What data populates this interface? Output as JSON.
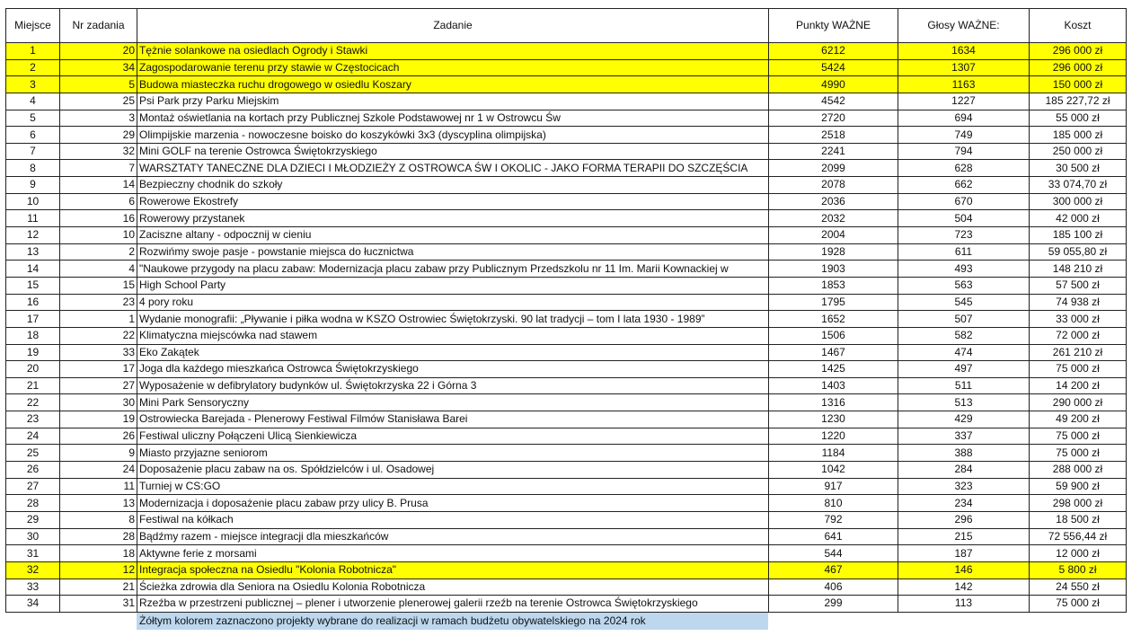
{
  "headers": [
    "Miejsce",
    "Nr zadania",
    "Zadanie",
    "Punkty WAŻNE",
    "Głosy WAŻNE:",
    "Koszt"
  ],
  "highlight_color": "#ffff00",
  "note_color": "#bdd7ee",
  "rows": [
    {
      "place": "1",
      "nr": "20",
      "task": "Tężnie solankowe na osiedlach Ogrody i Stawki",
      "points": "6212",
      "votes": "1634",
      "cost": "296 000 zł",
      "selected": true
    },
    {
      "place": "2",
      "nr": "34",
      "task": "Zagospodarowanie terenu przy stawie w Częstocicach",
      "points": "5424",
      "votes": "1307",
      "cost": "296 000 zł",
      "selected": true
    },
    {
      "place": "3",
      "nr": "5",
      "task": "Budowa miasteczka ruchu drogowego w osiedlu Koszary",
      "points": "4990",
      "votes": "1163",
      "cost": "150 000 zł",
      "selected": true
    },
    {
      "place": "4",
      "nr": "25",
      "task": "Psi Park przy Parku Miejskim",
      "points": "4542",
      "votes": "1227",
      "cost": "185 227,72 zł",
      "selected": false
    },
    {
      "place": "5",
      "nr": "3",
      "task": "Montaż oświetlania na kortach przy Publicznej Szkole Podstawowej nr 1 w Ostrowcu Św",
      "points": "2720",
      "votes": "694",
      "cost": "55 000 zł",
      "selected": false
    },
    {
      "place": "6",
      "nr": "29",
      "task": "Olimpijskie marzenia - nowoczesne boisko do koszykówki 3x3 (dyscyplina olimpijska)",
      "points": "2518",
      "votes": "749",
      "cost": "185 000 zł",
      "selected": false
    },
    {
      "place": "7",
      "nr": "32",
      "task": "Mini GOLF na terenie Ostrowca Świętokrzyskiego",
      "points": "2241",
      "votes": "794",
      "cost": "250 000 zł",
      "selected": false
    },
    {
      "place": "8",
      "nr": "7",
      "task": "WARSZTATY TANECZNE DLA DZIECI I MŁODZIEŻY Z OSTROWCA ŚW I OKOLIC - JAKO FORMA TERAPII DO SZCZĘŚCIA",
      "points": "2099",
      "votes": "628",
      "cost": "30 500 zł",
      "selected": false
    },
    {
      "place": "9",
      "nr": "14",
      "task": "Bezpieczny chodnik do szkoły",
      "points": "2078",
      "votes": "662",
      "cost": "33 074,70 zł",
      "selected": false
    },
    {
      "place": "10",
      "nr": "6",
      "task": "Rowerowe Ekostrefy",
      "points": "2036",
      "votes": "670",
      "cost": "300 000 zł",
      "selected": false
    },
    {
      "place": "11",
      "nr": "16",
      "task": "Rowerowy przystanek",
      "points": "2032",
      "votes": "504",
      "cost": "42 000 zł",
      "selected": false
    },
    {
      "place": "12",
      "nr": "10",
      "task": "Zaciszne altany - odpocznij w cieniu",
      "points": "2004",
      "votes": "723",
      "cost": "185 100 zł",
      "selected": false
    },
    {
      "place": "13",
      "nr": "2",
      "task": "Rozwińmy swoje pasje - powstanie miejsca do łucznictwa",
      "points": "1928",
      "votes": "611",
      "cost": "59 055,80 zł",
      "selected": false
    },
    {
      "place": "14",
      "nr": "4",
      "task": "\"Naukowe przygody na placu zabaw: Modernizacja placu zabaw przy Publicznym Przedszkolu nr 11 Im. Marii Kownackiej w",
      "points": "1903",
      "votes": "493",
      "cost": "148 210 zł",
      "selected": false
    },
    {
      "place": "15",
      "nr": "15",
      "task": "High School Party",
      "points": "1853",
      "votes": "563",
      "cost": "57 500 zł",
      "selected": false
    },
    {
      "place": "16",
      "nr": "23",
      "task": "4 pory roku",
      "points": "1795",
      "votes": "545",
      "cost": "74 938 zł",
      "selected": false
    },
    {
      "place": "17",
      "nr": "1",
      "task": "Wydanie monografii: „Pływanie i piłka wodna w KSZO Ostrowiec Świętokrzyski. 90 lat tradycji – tom I lata 1930 - 1989”",
      "points": "1652",
      "votes": "507",
      "cost": "33 000 zł",
      "selected": false
    },
    {
      "place": "18",
      "nr": "22",
      "task": "Klimatyczna miejscówka nad stawem",
      "points": "1506",
      "votes": "582",
      "cost": "72 000 zł",
      "selected": false
    },
    {
      "place": "19",
      "nr": "33",
      "task": "Eko Zakątek",
      "points": "1467",
      "votes": "474",
      "cost": "261 210 zł",
      "selected": false
    },
    {
      "place": "20",
      "nr": "17",
      "task": "Joga dla każdego mieszkańca Ostrowca Świętokrzyskiego",
      "points": "1425",
      "votes": "497",
      "cost": "75 000 zł",
      "selected": false
    },
    {
      "place": "21",
      "nr": "27",
      "task": "Wyposażenie w defibrylatory budynków ul. Świętokrzyska 22 i Górna 3",
      "points": "1403",
      "votes": "511",
      "cost": "14 200 zł",
      "selected": false
    },
    {
      "place": "22",
      "nr": "30",
      "task": "Mini Park Sensoryczny",
      "points": "1316",
      "votes": "513",
      "cost": "290 000 zł",
      "selected": false
    },
    {
      "place": "23",
      "nr": "19",
      "task": "Ostrowiecka Barejada - Plenerowy Festiwal Filmów Stanisława Barei",
      "points": "1230",
      "votes": "429",
      "cost": "49 200 zł",
      "selected": false
    },
    {
      "place": "24",
      "nr": "26",
      "task": "Festiwal uliczny Połączeni Ulicą Sienkiewicza",
      "points": "1220",
      "votes": "337",
      "cost": "75 000 zł",
      "selected": false
    },
    {
      "place": "25",
      "nr": "9",
      "task": "Miasto przyjazne seniorom",
      "points": "1184",
      "votes": "388",
      "cost": "75 000 zł",
      "selected": false
    },
    {
      "place": "26",
      "nr": "24",
      "task": "Doposażenie placu zabaw na os. Spółdzielców i ul. Osadowej",
      "points": "1042",
      "votes": "284",
      "cost": "288 000 zł",
      "selected": false
    },
    {
      "place": "27",
      "nr": "11",
      "task": "Turniej w CS:GO",
      "points": "917",
      "votes": "323",
      "cost": "59 900 zł",
      "selected": false
    },
    {
      "place": "28",
      "nr": "13",
      "task": "Modernizacja i doposażenie placu zabaw przy ulicy B. Prusa",
      "points": "810",
      "votes": "234",
      "cost": "298 000 zł",
      "selected": false
    },
    {
      "place": "29",
      "nr": "8",
      "task": "Festiwal na kółkach",
      "points": "792",
      "votes": "296",
      "cost": "18 500 zł",
      "selected": false
    },
    {
      "place": "30",
      "nr": "28",
      "task": "Bądźmy razem - miejsce integracji dla mieszkańców",
      "points": "641",
      "votes": "215",
      "cost": "72 556,44 zł",
      "selected": false
    },
    {
      "place": "31",
      "nr": "18",
      "task": "Aktywne ferie z morsami",
      "points": "544",
      "votes": "187",
      "cost": "12 000 zł",
      "selected": false
    },
    {
      "place": "32",
      "nr": "12",
      "task": "Integracja społeczna na Osiedlu \"Kolonia Robotnicza\"",
      "points": "467",
      "votes": "146",
      "cost": "5 800 zł",
      "selected": true
    },
    {
      "place": "33",
      "nr": "21",
      "task": "Ścieżka zdrowia dla Seniora na Osiedlu Kolonia Robotnicza",
      "points": "406",
      "votes": "142",
      "cost": "24 550 zł",
      "selected": false
    },
    {
      "place": "34",
      "nr": "31",
      "task": "Rzeźba w przestrzeni publicznej – plener i utworzenie plenerowej galerii rzeźb na terenie Ostrowca Świętokrzyskiego",
      "points": "299",
      "votes": "113",
      "cost": "75 000 zł",
      "selected": false
    }
  ],
  "note": "Żółtym kolorem zaznaczono projekty wybrane do realizacji  w ramach budżetu obywatelskiego na 2024 rok"
}
